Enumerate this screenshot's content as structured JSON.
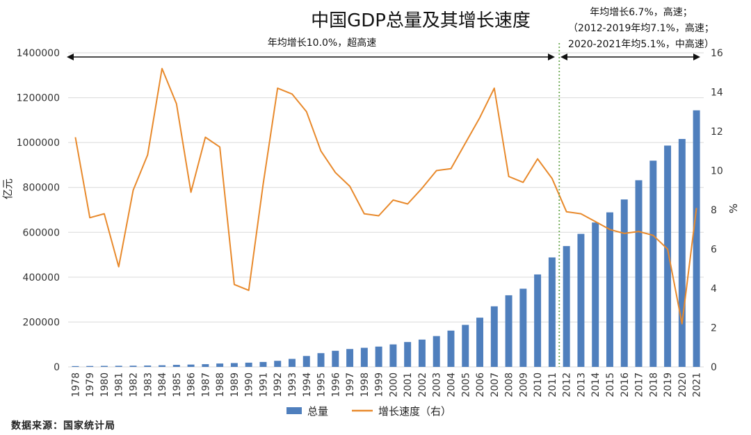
{
  "chart_data": {
    "type": "bar+line",
    "title": "中国GDP总量及其增长速度",
    "categories": [
      "1978",
      "1979",
      "1980",
      "1981",
      "1982",
      "1983",
      "1984",
      "1985",
      "1986",
      "1987",
      "1988",
      "1989",
      "1990",
      "1991",
      "1992",
      "1993",
      "1994",
      "1995",
      "1996",
      "1997",
      "1998",
      "1999",
      "2000",
      "2001",
      "2002",
      "2003",
      "2004",
      "2005",
      "2006",
      "2007",
      "2008",
      "2009",
      "2010",
      "2011",
      "2012",
      "2013",
      "2014",
      "2015",
      "2016",
      "2017",
      "2018",
      "2019",
      "2020",
      "2021"
    ],
    "series": [
      {
        "name": "总量",
        "type": "bar",
        "axis": "left",
        "color": "#4f7fbd",
        "values": [
          3679,
          4101,
          4588,
          4936,
          5373,
          6021,
          7279,
          9099,
          10376,
          12175,
          15180,
          17180,
          18873,
          22006,
          27195,
          35673,
          48638,
          61340,
          71814,
          79715,
          85196,
          90564,
          100280,
          110863,
          121717,
          137422,
          161840,
          187319,
          219439,
          270092,
          319245,
          348518,
          412119,
          487940,
          538580,
          592963,
          643563,
          688858,
          746395,
          832036,
          919281,
          986515,
          1015986,
          1143670
        ]
      },
      {
        "name": "增长速度（右）",
        "type": "line",
        "axis": "right",
        "color": "#e8892b",
        "values": [
          11.7,
          7.6,
          7.8,
          5.1,
          9.0,
          10.8,
          15.2,
          13.4,
          8.9,
          11.7,
          11.2,
          4.2,
          3.9,
          9.3,
          14.2,
          13.9,
          13.0,
          11.0,
          9.9,
          9.2,
          7.8,
          7.7,
          8.5,
          8.3,
          9.1,
          10.0,
          10.1,
          11.4,
          12.7,
          14.2,
          9.7,
          9.4,
          10.6,
          9.6,
          7.9,
          7.8,
          7.4,
          7.0,
          6.8,
          6.9,
          6.7,
          6.0,
          2.2,
          8.1
        ]
      }
    ],
    "left_axis": {
      "label": "亿元",
      "min": 0,
      "max": 1400000,
      "step": 200000,
      "ticks": [
        "0",
        "200000",
        "400000",
        "600000",
        "800000",
        "1000000",
        "1200000",
        "1400000"
      ]
    },
    "right_axis": {
      "label": "%",
      "min": 0,
      "max": 16,
      "step": 2,
      "ticks": [
        "0",
        "2",
        "4",
        "6",
        "8",
        "10",
        "12",
        "14",
        "16"
      ]
    },
    "grid": "horizontal",
    "legend_position": "bottom-center",
    "annotations": {
      "left_span": "年均增长10.0%，超高速",
      "right_lines": [
        "年均增长6.7%，高速；",
        "（2012-2019年均7.1%，高速；",
        "2020-2021年均5.1%，中高速）"
      ],
      "divider_between": [
        "2011",
        "2012"
      ]
    },
    "source": "数据来源：国家统计局"
  },
  "colors": {
    "bar": "#4f7fbd",
    "line": "#e8892b",
    "grid": "#d9d9d9",
    "divider": "#6aa84f"
  }
}
